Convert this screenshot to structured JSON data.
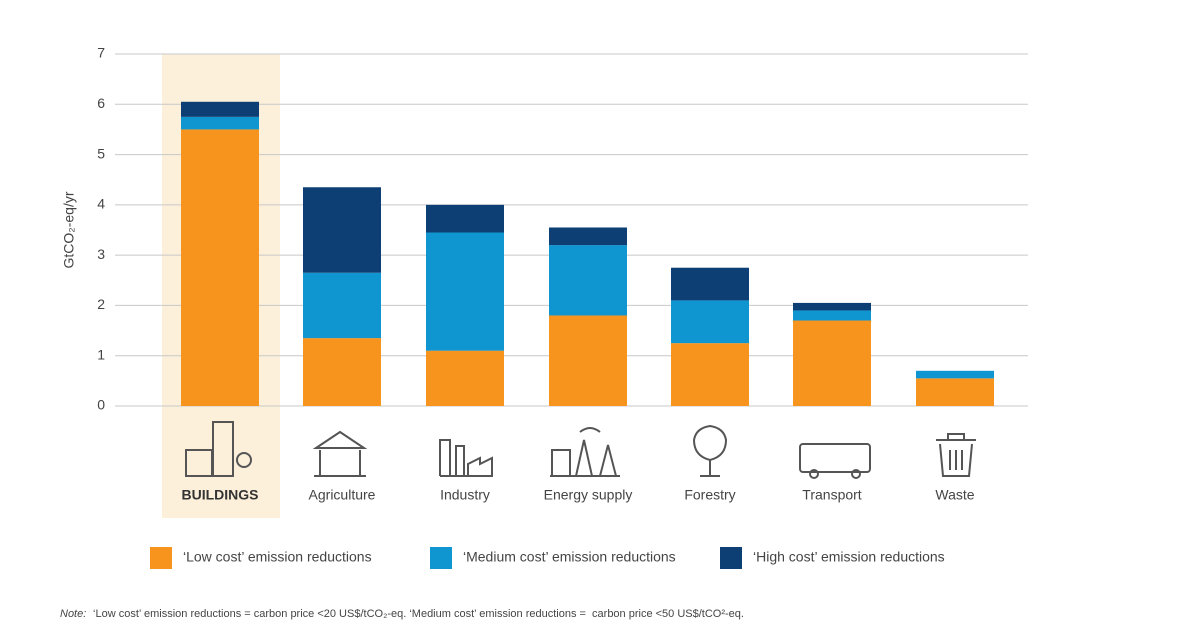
{
  "chart_data": {
    "type": "stacked_bar",
    "y_label": "GtCO₂-eq/yr",
    "categories": [
      "BUILDINGS",
      "Agriculture",
      "Industry",
      "Energy supply",
      "Forestry",
      "Transport",
      "Waste"
    ],
    "highlight_index": 0,
    "series": [
      {
        "name": "‘Low cost’ emission reductions",
        "color": "#f7941d",
        "values": [
          5.5,
          1.35,
          1.1,
          1.8,
          1.25,
          1.7,
          0.55
        ]
      },
      {
        "name": "‘Medium cost’ emission reductions",
        "color": "#0f95cf",
        "values": [
          0.25,
          1.3,
          2.35,
          1.4,
          0.85,
          0.2,
          0.15
        ]
      },
      {
        "name": "‘High cost’ emission reductions",
        "color": "#0d3f75",
        "values": [
          0.3,
          1.7,
          0.55,
          0.35,
          0.65,
          0.15,
          0
        ]
      }
    ],
    "ylim": [
      0,
      7
    ],
    "yticks": [
      0,
      1,
      2,
      3,
      4,
      5,
      6,
      7
    ],
    "grid": true,
    "note_label": "Note:",
    "note": " ‘Low cost’ emission reductions = carbon price <20 US$/tCO₂-eq. ‘Medium cost’ emission reductions =  carbon price <50 US$/tCO²-eq."
  }
}
